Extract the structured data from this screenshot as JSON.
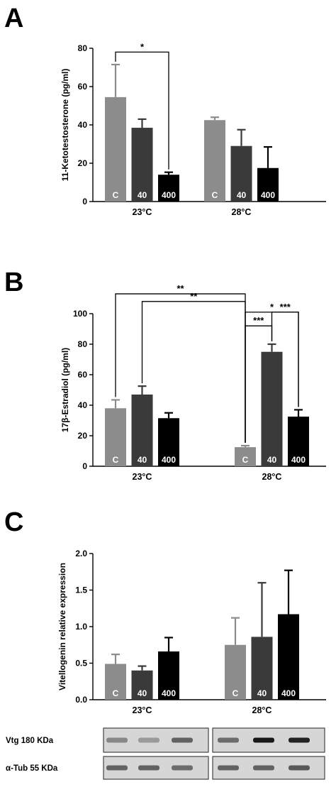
{
  "colors": {
    "control": "#8c8c8c",
    "dose40": "#3a3a3a",
    "dose400": "#000000"
  },
  "bar_labels": [
    "C",
    "40",
    "400"
  ],
  "chart_data": [
    {
      "panel": "A",
      "type": "bar",
      "ylabel": "11-Ketotestosterone (pg/ml)",
      "ylim": [
        0,
        80
      ],
      "yticks": [
        "0",
        "20",
        "40",
        "60",
        "80"
      ],
      "groups": [
        "23°C",
        "28°C"
      ],
      "series": [
        {
          "name": "C",
          "values": [
            54.5,
            42.5
          ],
          "errors": [
            17.0,
            1.5
          ]
        },
        {
          "name": "40",
          "values": [
            38.5,
            29.0
          ],
          "errors": [
            4.5,
            8.5
          ]
        },
        {
          "name": "400",
          "values": [
            14.0,
            17.5
          ],
          "errors": [
            1.3,
            11.0
          ]
        }
      ],
      "significance": [
        {
          "label": "*",
          "from": [
            0,
            0
          ],
          "to": [
            0,
            2
          ],
          "y": 78
        }
      ]
    },
    {
      "panel": "B",
      "type": "bar",
      "ylabel": "17β-Estradiol (pg/ml)",
      "ylim": [
        0,
        100
      ],
      "yticks": [
        "0",
        "20",
        "40",
        "60",
        "80",
        "100"
      ],
      "groups": [
        "23°C",
        "28°C"
      ],
      "series": [
        {
          "name": "C",
          "values": [
            38.0,
            12.5
          ],
          "errors": [
            5.5,
            1.0
          ]
        },
        {
          "name": "40",
          "values": [
            47.0,
            75.0
          ],
          "errors": [
            5.5,
            5.0
          ]
        },
        {
          "name": "400",
          "values": [
            31.5,
            32.5
          ],
          "errors": [
            3.5,
            4.5
          ]
        }
      ],
      "significance": [
        {
          "label": "**",
          "from": [
            0,
            0
          ],
          "to": [
            1,
            0
          ],
          "y": 113
        },
        {
          "label": "**",
          "from": [
            0,
            1
          ],
          "to": [
            1,
            0
          ],
          "y": 108
        },
        {
          "label": "*",
          "from": [
            1,
            0
          ],
          "to": [
            1,
            2
          ],
          "y": 101
        },
        {
          "label": "***",
          "from": [
            1,
            0
          ],
          "to": [
            1,
            1
          ],
          "y": 92
        },
        {
          "label": "***",
          "from": [
            1,
            1
          ],
          "to": [
            1,
            2
          ],
          "y": 101
        }
      ]
    },
    {
      "panel": "C",
      "type": "bar",
      "ylabel": "Vitellogenin relative expression",
      "ylim": [
        0,
        2.0
      ],
      "yticks": [
        "0.0",
        "0.5",
        "1.0",
        "1.5",
        "2.0"
      ],
      "groups": [
        "23°C",
        "28°C"
      ],
      "series": [
        {
          "name": "C",
          "values": [
            0.49,
            0.75
          ],
          "errors": [
            0.13,
            0.37
          ]
        },
        {
          "name": "40",
          "values": [
            0.4,
            0.86
          ],
          "errors": [
            0.06,
            0.74
          ]
        },
        {
          "name": "400",
          "values": [
            0.66,
            1.17
          ],
          "errors": [
            0.19,
            0.6
          ]
        }
      ],
      "blots": [
        {
          "label": "Vtg 180 KDa",
          "intensity": [
            [
              0.35,
              0.25,
              0.55
            ],
            [
              0.5,
              0.95,
              0.9
            ]
          ]
        },
        {
          "label": "α-Tub 55 KDa",
          "intensity": [
            [
              0.55,
              0.55,
              0.5
            ],
            [
              0.55,
              0.55,
              0.6
            ]
          ]
        }
      ]
    }
  ]
}
